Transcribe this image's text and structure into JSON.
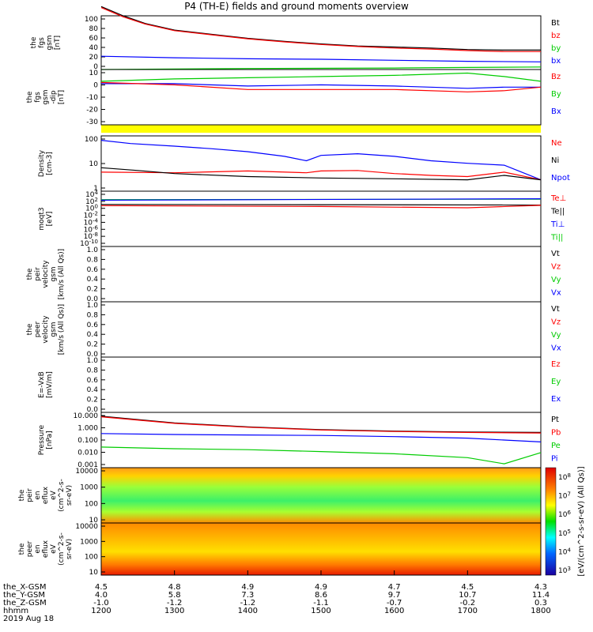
{
  "title": "P4 (TH-E) fields and ground moments overview",
  "chart_data": {
    "type": "line",
    "title": "P4 (TH-E) fields and ground moments overview",
    "x_ticks": [
      "1200",
      "1300",
      "1400",
      "1500",
      "1600",
      "1700",
      "1800"
    ],
    "x_range": [
      1200,
      1800
    ],
    "x_unit": "hhmm",
    "date_label": "2019 Aug 18",
    "ephemeris": {
      "labels": [
        "the_X-GSM",
        "the_Y-GSM",
        "the_Z-GSM",
        "hhmm"
      ],
      "rows": [
        [
          "4.5",
          "4.8",
          "4.9",
          "4.9",
          "4.7",
          "4.5",
          "4.3"
        ],
        [
          "4.0",
          "5.8",
          "7.3",
          "8.6",
          "9.7",
          "10.7",
          "11.4"
        ],
        [
          "-1.0",
          "-1.2",
          "-1.2",
          "-1.1",
          "-0.7",
          "-0.2",
          "0.3"
        ]
      ]
    },
    "panels": [
      {
        "ylabel": [
          "the",
          "fgs",
          "gsm",
          "[nT]"
        ],
        "ylim": [
          -5,
          100
        ],
        "scale": "linear",
        "ticks": [
          "100",
          "80",
          "60",
          "40",
          "20",
          "0"
        ],
        "legend": [
          {
            "text": "Bt",
            "color": "#000000"
          },
          {
            "text": "bz",
            "color": "#ff0000"
          },
          {
            "text": "by",
            "color": "#00cc00"
          },
          {
            "text": "bx",
            "color": "#0000ff"
          }
        ],
        "series": [
          {
            "name": "Bt",
            "color": "#000000",
            "x": [
              1200,
              1230,
              1260,
              1300,
              1350,
              1400,
              1450,
              1500,
              1550,
              1600,
              1650,
              1700,
              1750,
              1800
            ],
            "y": [
              118,
              100,
              85,
              72,
              64,
              56,
              50,
              45,
              41,
              39,
              37,
              34,
              33,
              33
            ]
          },
          {
            "name": "bz",
            "color": "#ff0000",
            "x": [
              1200,
              1230,
              1260,
              1300,
              1350,
              1400,
              1450,
              1500,
              1550,
              1600,
              1650,
              1700,
              1750,
              1800
            ],
            "y": [
              116,
              98,
              84,
              71,
              63,
              55,
              49,
              44,
              40,
              37,
              35,
              32,
              30,
              30
            ]
          },
          {
            "name": "by",
            "color": "#00cc00",
            "x": [
              1200,
              1400,
              1600,
              1700,
              1800
            ],
            "y": [
              -5,
              -3,
              -2,
              -1,
              0
            ]
          },
          {
            "name": "bx",
            "color": "#0000ff",
            "x": [
              1200,
              1300,
              1400,
              1500,
              1600,
              1700,
              1800
            ],
            "y": [
              21,
              18,
              16,
              15,
              13,
              11,
              10
            ]
          }
        ]
      },
      {
        "ylabel": [
          "the",
          "fgs",
          "gsm",
          "-dip",
          "[nT]"
        ],
        "ylim": [
          -35,
          12
        ],
        "scale": "linear",
        "ticks": [
          "10",
          "0",
          "-10",
          "-20",
          "-30"
        ],
        "legend": [
          {
            "text": "Bz",
            "color": "#ff0000"
          },
          {
            "text": "By",
            "color": "#00cc00"
          },
          {
            "text": "Bx",
            "color": "#0000ff"
          }
        ],
        "series": [
          {
            "name": "By",
            "color": "#00cc00",
            "x": [
              1200,
              1300,
              1400,
              1500,
              1600,
              1700,
              1750,
              1800
            ],
            "y": [
              2,
              4,
              5,
              6,
              7,
              9,
              6,
              2
            ]
          },
          {
            "name": "Bx",
            "color": "#0000ff",
            "x": [
              1200,
              1300,
              1400,
              1500,
              1600,
              1700,
              1750,
              1800
            ],
            "y": [
              0,
              0,
              -2,
              -1,
              -2,
              -4,
              -3,
              -3
            ]
          },
          {
            "name": "Bz",
            "color": "#ff0000",
            "x": [
              1200,
              1300,
              1400,
              1500,
              1600,
              1700,
              1750,
              1800
            ],
            "y": [
              1,
              -1,
              -5,
              -5,
              -5,
              -7,
              -6,
              -3
            ]
          }
        ]
      },
      {
        "ylabel": [
          "Density",
          "[cm-3]"
        ],
        "ylim": [
          0.05,
          300
        ],
        "scale": "log",
        "ticks": [
          "100",
          "10",
          "1"
        ],
        "legend": [
          {
            "text": "Ne",
            "color": "#ff0000"
          },
          {
            "text": "Ni",
            "color": "#000000"
          },
          {
            "text": "Npot",
            "color": "#0000ff"
          }
        ],
        "series": [
          {
            "name": "Npot",
            "color": "#0000ff",
            "x": [
              1200,
              1240,
              1300,
              1350,
              1400,
              1450,
              1480,
              1500,
              1550,
              1600,
              1650,
              1700,
              1750,
              1800
            ],
            "y": [
              150,
              90,
              60,
              40,
              25,
              12,
              6,
              14,
              18,
              12,
              6,
              4,
              3,
              0.3
            ]
          },
          {
            "name": "Ne",
            "color": "#ff0000",
            "x": [
              1200,
              1300,
              1400,
              1480,
              1500,
              1550,
              1600,
              1650,
              1700,
              1750,
              1800
            ],
            "y": [
              1.0,
              0.9,
              1.2,
              0.9,
              1.2,
              1.3,
              0.8,
              0.6,
              0.5,
              1.0,
              0.3
            ]
          },
          {
            "name": "Ni",
            "color": "#000000",
            "x": [
              1200,
              1250,
              1300,
              1400,
              1500,
              1600,
              1700,
              1750,
              1800
            ],
            "y": [
              2.0,
              1.3,
              0.8,
              0.5,
              0.4,
              0.35,
              0.3,
              0.6,
              0.3
            ]
          }
        ]
      },
      {
        "ylabel": [
          "moqt3",
          "[eV]"
        ],
        "ylim": [
          0.001,
          100000
        ],
        "scale": "log",
        "ticks": [
          "10^4",
          "10^2",
          "10^0",
          "10^-2",
          "10^-4",
          "10^-6",
          "10^-8",
          "10^-10"
        ],
        "legend": [
          {
            "text": "Te⊥",
            "color": "#ff0000"
          },
          {
            "text": "Te||",
            "color": "#000000"
          },
          {
            "text": "Ti⊥",
            "color": "#0000ff"
          },
          {
            "text": "Ti||",
            "color": "#00cc00"
          }
        ],
        "series": [
          {
            "name": "Ti||",
            "color": "#00cc00",
            "x": [
              1200,
              1800
            ],
            "y": [
              6000,
              7000
            ]
          },
          {
            "name": "Ti⊥",
            "color": "#0000ff",
            "x": [
              1200,
              1800
            ],
            "y": [
              5000,
              8000
            ]
          },
          {
            "name": "Te||",
            "color": "#000000",
            "x": [
              1200,
              1800
            ],
            "y": [
              1200,
              1000
            ]
          },
          {
            "name": "Te⊥",
            "color": "#ff0000",
            "x": [
              1200,
              1500,
              1700,
              1800
            ],
            "y": [
              800,
              600,
              400,
              900
            ]
          }
        ]
      },
      {
        "ylabel": [
          "the",
          "peir",
          "velocity",
          "gsm",
          "[km/s (All Qs)]"
        ],
        "ylim": [
          0,
          1
        ],
        "scale": "linear",
        "ticks": [
          "1.0",
          "0.8",
          "0.6",
          "0.4",
          "0.2",
          "0.0"
        ],
        "legend": [
          {
            "text": "Vt",
            "color": "#000000"
          },
          {
            "text": "Vz",
            "color": "#ff0000"
          },
          {
            "text": "Vy",
            "color": "#00cc00"
          },
          {
            "text": "Vx",
            "color": "#0000ff"
          }
        ],
        "series": []
      },
      {
        "ylabel": [
          "the",
          "peer",
          "velocity",
          "gsm",
          "[km/s (All Qs)]"
        ],
        "ylim": [
          0,
          1
        ],
        "scale": "linear",
        "ticks": [
          "1.0",
          "0.8",
          "0.6",
          "0.4",
          "0.2",
          "0.0"
        ],
        "legend": [
          {
            "text": "Vt",
            "color": "#000000"
          },
          {
            "text": "Vz",
            "color": "#ff0000"
          },
          {
            "text": "Vy",
            "color": "#00cc00"
          },
          {
            "text": "Vx",
            "color": "#0000ff"
          }
        ],
        "series": []
      },
      {
        "ylabel": [
          "E=-VxB",
          "[mV/m]"
        ],
        "ylim": [
          0,
          1
        ],
        "scale": "linear",
        "ticks": [
          "1.0",
          "0.8",
          "0.6",
          "0.4",
          "0.2",
          "0.0"
        ],
        "legend": [
          {
            "text": "Ez",
            "color": "#ff0000"
          },
          {
            "text": "Ey",
            "color": "#00cc00"
          },
          {
            "text": "Ex",
            "color": "#0000ff"
          }
        ],
        "series": []
      },
      {
        "ylabel": [
          "Pressure",
          "[nPa]"
        ],
        "ylim": [
          0.001,
          20
        ],
        "scale": "log",
        "ticks": [
          "10.000",
          "1.000",
          "0.100",
          "0.010",
          "0.001"
        ],
        "legend": [
          {
            "text": "Pt",
            "color": "#000000"
          },
          {
            "text": "Pb",
            "color": "#ff0000"
          },
          {
            "text": "Pe",
            "color": "#00cc00"
          },
          {
            "text": "Pi",
            "color": "#0000ff"
          }
        ],
        "series": [
          {
            "name": "Pt",
            "color": "#000000",
            "x": [
              1200,
              1300,
              1400,
              1500,
              1600,
              1700,
              1800
            ],
            "y": [
              10,
              3,
              1.5,
              0.9,
              0.7,
              0.6,
              0.55
            ]
          },
          {
            "name": "Pb",
            "color": "#ff0000",
            "x": [
              1200,
              1300,
              1400,
              1500,
              1600,
              1700,
              1800
            ],
            "y": [
              9,
              2.8,
              1.4,
              0.85,
              0.65,
              0.55,
              0.5
            ]
          },
          {
            "name": "Pi",
            "color": "#0000ff",
            "x": [
              1200,
              1300,
              1400,
              1500,
              1600,
              1700,
              1800
            ],
            "y": [
              0.45,
              0.38,
              0.35,
              0.32,
              0.26,
              0.2,
              0.1
            ]
          },
          {
            "name": "Pe",
            "color": "#00cc00",
            "x": [
              1200,
              1300,
              1400,
              1500,
              1600,
              1700,
              1750,
              1800
            ],
            "y": [
              0.04,
              0.03,
              0.025,
              0.018,
              0.012,
              0.006,
              0.002,
              0.015
            ]
          }
        ]
      },
      {
        "type": "heatmap",
        "ylabel": [
          "the",
          "peir",
          "en",
          "eflux",
          "eV",
          "(cm^2-s-",
          "sr-eV)"
        ],
        "ylim": [
          5,
          20000
        ],
        "scale": "log",
        "ticks": [
          "10000",
          "1000",
          "100",
          "10"
        ]
      },
      {
        "type": "heatmap",
        "ylabel": [
          "the",
          "peer",
          "en",
          "eflux",
          "eV",
          "(cm^2-s-",
          "sr-eV)"
        ],
        "ylim": [
          5,
          20000
        ],
        "scale": "log",
        "ticks": [
          "10000",
          "1000",
          "100",
          "10"
        ]
      }
    ],
    "colorbar": {
      "label": "[eV/(cm^2-s-sr-eV) (All Qs)]",
      "ticks": [
        "10^8",
        "10^7",
        "10^6",
        "10^5",
        "10^4",
        "10^3"
      ]
    },
    "status_bar_color": "#ffff00"
  }
}
